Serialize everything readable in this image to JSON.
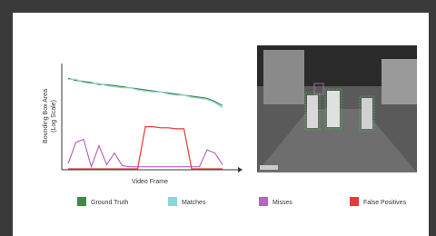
{
  "chart_data": {
    "type": "line",
    "x_label": "Video Frame",
    "y_label": [
      "Bounding Box Area",
      "(Log Scale)"
    ],
    "xlim": [
      0,
      100
    ],
    "ylim": [
      0,
      100
    ],
    "log_scale": false,
    "grid": false,
    "x": [
      0,
      5,
      10,
      15,
      20,
      25,
      30,
      35,
      40,
      45,
      50,
      55,
      60,
      65,
      70,
      75,
      80,
      85,
      90,
      95,
      100
    ],
    "series": [
      {
        "name": "Ground Truth",
        "color": "#3f8a45",
        "values": [
          86,
          84,
          83,
          82,
          80,
          80,
          79,
          78,
          77,
          76,
          75,
          74,
          73,
          72,
          71,
          70,
          69,
          68,
          67,
          64,
          60
        ]
      },
      {
        "name": "Matches",
        "color": "#8fd3dc",
        "values": [
          85,
          85,
          82,
          81,
          81,
          79,
          78,
          77,
          77,
          75,
          74,
          73,
          73,
          71,
          70,
          70,
          68,
          67,
          66,
          63,
          58
        ]
      },
      {
        "name": "Misses",
        "color": "#b866c0",
        "values": [
          5,
          25,
          28,
          2,
          22,
          4,
          15,
          3,
          2,
          2,
          2,
          2,
          2,
          2,
          2,
          2,
          2,
          2,
          18,
          15,
          4
        ]
      },
      {
        "name": "False Positives",
        "color": "#e53a3a",
        "values": [
          0,
          0,
          0,
          0,
          0,
          0,
          0,
          0,
          0,
          0,
          40,
          40,
          39,
          39,
          38,
          38,
          0,
          0,
          0,
          0,
          0
        ]
      }
    ]
  }
}
